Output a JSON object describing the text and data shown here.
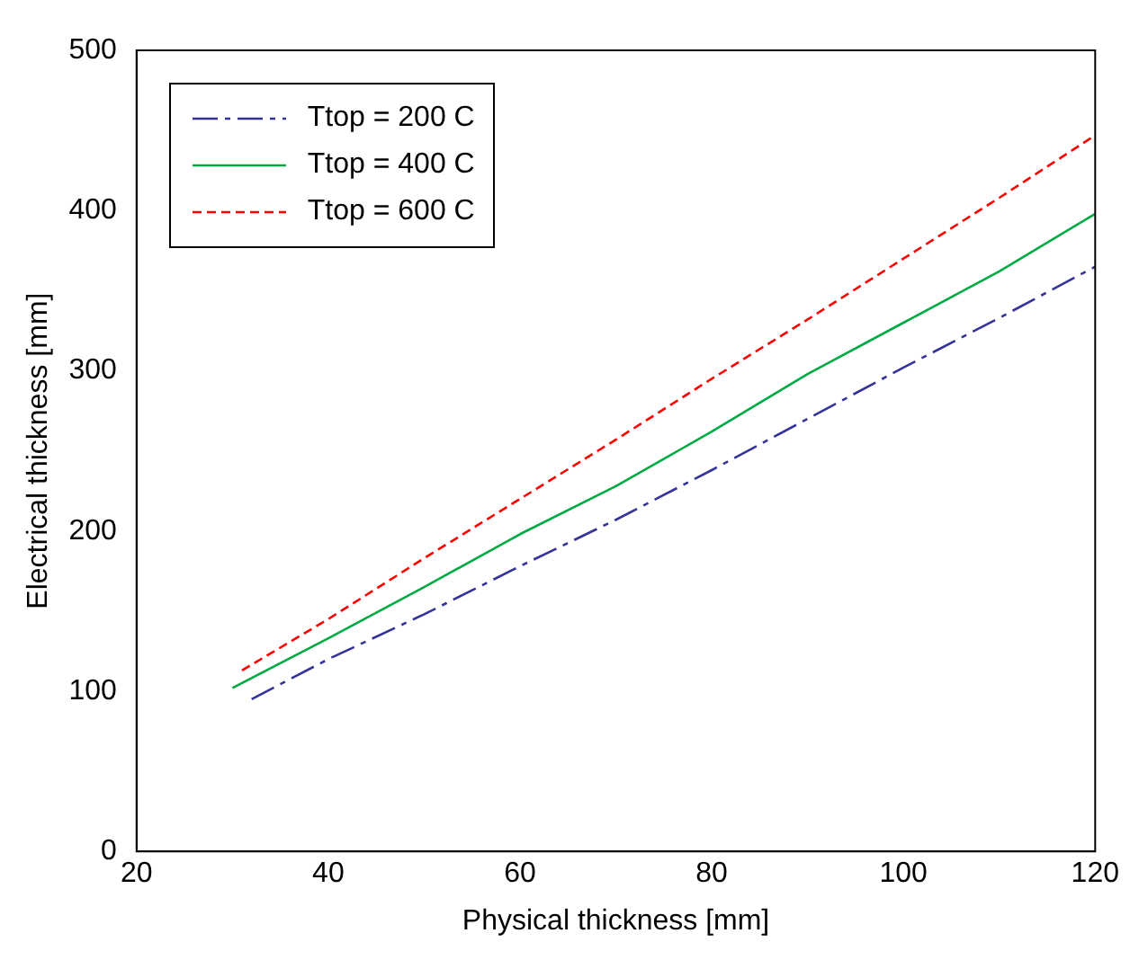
{
  "chart_data": {
    "type": "line",
    "xlabel": "Physical thickness [mm]",
    "ylabel": "Electrical thickness [mm]",
    "xlim": [
      20,
      120
    ],
    "xticks": [
      20,
      40,
      60,
      80,
      100,
      120
    ],
    "ylim": [
      0,
      500
    ],
    "yticks": [
      0,
      100,
      200,
      300,
      400,
      500
    ],
    "grid": false,
    "legend": "top left",
    "series": [
      {
        "name": "Ttop = 200 C",
        "color": "#333399",
        "line_style": "dashed",
        "x": [
          32,
          40,
          50,
          60,
          70,
          80,
          90,
          100,
          110,
          120
        ],
        "values": [
          95,
          120,
          148,
          178,
          207,
          238,
          270,
          302,
          333,
          365
        ]
      },
      {
        "name": "Ttop = 400 C",
        "color": "#00aa44",
        "line_style": "solid",
        "x": [
          30,
          40,
          50,
          60,
          70,
          80,
          90,
          100,
          110,
          120
        ],
        "values": [
          102,
          133,
          165,
          198,
          228,
          262,
          298,
          330,
          362,
          398
        ]
      },
      {
        "name": "Ttop = 600 C",
        "color": "#ff0000",
        "line_style": "dotted",
        "x": [
          31,
          40,
          50,
          60,
          70,
          80,
          90,
          100,
          110,
          120
        ],
        "values": [
          113,
          145,
          183,
          220,
          257,
          295,
          332,
          370,
          408,
          447
        ]
      }
    ]
  }
}
